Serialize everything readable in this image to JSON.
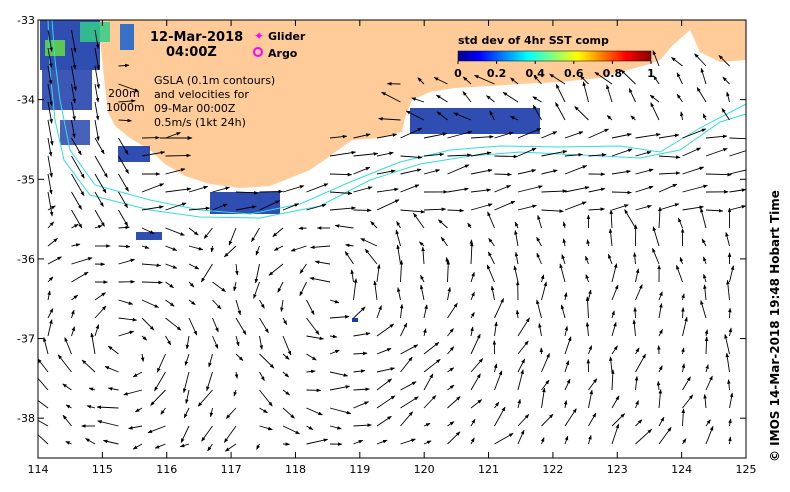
{
  "header": {
    "date_line": "12-Mar-2018",
    "time_line": "04:00Z"
  },
  "legend": {
    "glider_label": "Glider",
    "argo_label": "Argo",
    "glider_color": "#ff00ff",
    "argo_color": "#ff00ff"
  },
  "depth_labels": {
    "shallow": "200m",
    "deep": "1000m"
  },
  "notes": {
    "line1": "GSLA (0.1m contours)",
    "line2": "and velocities for",
    "line3": "09-Mar 00:00Z",
    "line4": "0.5m/s (1kt 24h)"
  },
  "colorbar": {
    "title": "std dev of 4hr SST comp",
    "ticks": [
      "0",
      "0.2",
      "0.4",
      "0.6",
      "0.8",
      "1"
    ],
    "colormap": "jet"
  },
  "credit": "© IMOS 14-Mar-2018 19:48 Hobart Time",
  "colors": {
    "land": "#ffcc99",
    "isobath": "#33dddd",
    "sst_patch": "#1a3aa8",
    "arrow": "#000000"
  },
  "chart_data": {
    "type": "map",
    "xlim": [
      114,
      125
    ],
    "ylim": [
      -38.5,
      -33
    ],
    "x_ticks": [
      "114",
      "115",
      "116",
      "117",
      "118",
      "119",
      "120",
      "121",
      "122",
      "123",
      "124",
      "125"
    ],
    "y_ticks": [
      "-33",
      "-34",
      "-35",
      "-36",
      "-37",
      "-38"
    ],
    "grid": false
  }
}
